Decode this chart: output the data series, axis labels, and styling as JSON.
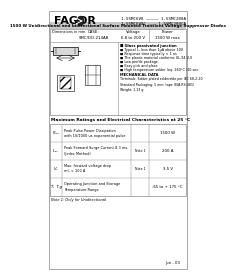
{
  "bg_color": "#f5f5f5",
  "page_bg": "#ffffff",
  "title_bar_color": "#c0c0c0",
  "title_bar_text": "1500 W Unidirectional and bidirectional Surface Mounted Transient Voltage Suppressor Diodes",
  "logo_text": "FAGOR",
  "part_line1": "1.5SMC6V8 ————— 1.5SMC200A",
  "part_line2": "1.5SMC6V8C ——— 1.5SMC200CA",
  "case_label": "CASE:\nSMC/DO-214AB",
  "voltage_label": "Voltage\n6.8 to 200 V",
  "power_label": "Power\n1500 W max",
  "features_title": "■ Glass passivated junction",
  "features": [
    "■ Typical Iₜₜ less than 1μA above 10V",
    "■ Response time typically < 1 ns",
    "■ The plastic material conforms UL-94 V-0",
    "■ Low profile package",
    "■ Easy pick and place",
    "■ High temperature solder (eq. 260°C /10 sec."
  ],
  "mech_title": "MECHANICAL DATA",
  "mech_text": "Terminals: Solder plated solderable per IEC 68-2-20\nStandard Packaging: 5 mm. tape (EIA-RS-481)\nWeight: 1.13 g.",
  "table_title": "Maximum Ratings and Electrical Characteristics at 25 °C",
  "table_rows": [
    {
      "sym": "Pₚₚₖ",
      "desc": "Peak Pulse Power Dissipation\nwith 10/1000 us exponential pulse",
      "note": "",
      "value": "1500 W"
    },
    {
      "sym": "Iₚₚₖ",
      "desc": "Peak Forward Surge Current 8.3 ms.\n(Jedec Method)",
      "note": "Note 1",
      "value": "200 A"
    },
    {
      "sym": "Vₙ",
      "desc": "Max. forward voltage drop\nmIₙ = 100 A",
      "note": "Note 1",
      "value": "3.5 V"
    },
    {
      "sym": "Tⱼ  Tⱼg",
      "desc": "Operating Junction and Storage\nTemperature Range",
      "note": "",
      "value": "-65 to + 175 °C"
    }
  ],
  "note_text": "Note 1: Only for Unidirectional",
  "footer_text": "Jun - 03"
}
